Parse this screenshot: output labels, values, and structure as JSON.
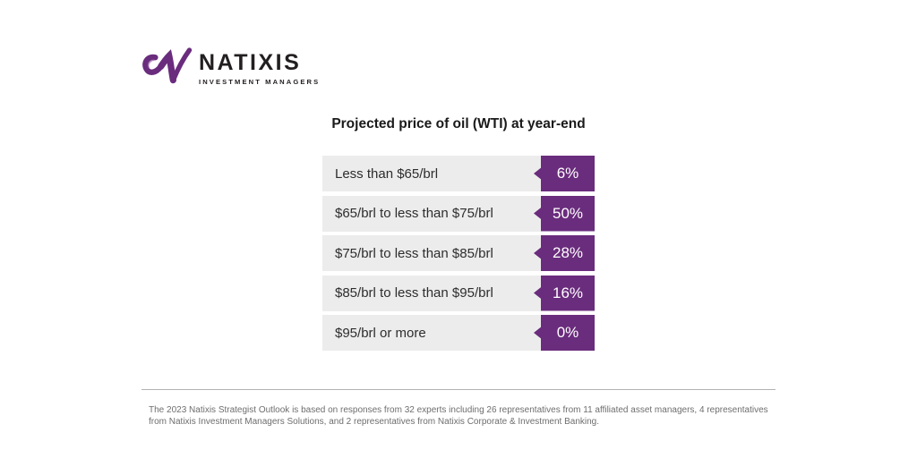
{
  "logo": {
    "brand": "NATIXIS",
    "tagline": "INVESTMENT MANAGERS",
    "mark_color": "#6a2c7d"
  },
  "chart_data": {
    "type": "bar",
    "title": "Projected price of oil (WTI) at year-end",
    "categories": [
      "Less than $65/brl",
      "$65/brl to less than $75/brl",
      "$75/brl to less than $85/brl",
      "$85/brl to less than $95/brl",
      "$95/brl or more"
    ],
    "values": [
      6,
      50,
      28,
      16,
      0
    ],
    "value_labels": [
      "6%",
      "50%",
      "28%",
      "16%",
      "0%"
    ],
    "xlabel": "",
    "ylabel": "",
    "legend": "none",
    "grid": false,
    "colors": {
      "bar_track": "#edecec",
      "value_block": "#6a2c7d",
      "value_text": "#ffffff",
      "label_text": "#2d2d2d"
    }
  },
  "footnote": "The 2023 Natixis Strategist Outlook is based on responses from 32 experts including 26 representatives from 11 affiliated asset managers, 4 representatives from Natixis Investment Managers Solutions, and 2 representatives from Natixis Corporate & Investment Banking."
}
